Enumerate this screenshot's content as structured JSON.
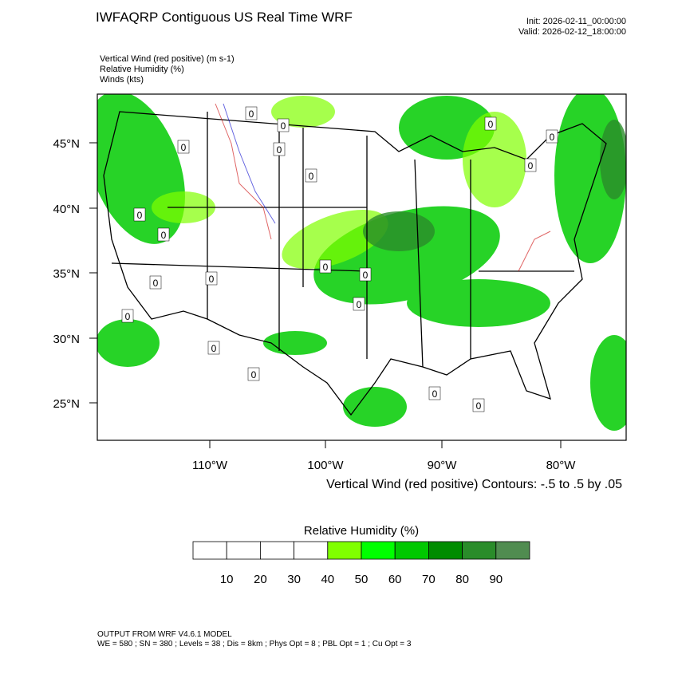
{
  "header": {
    "title": "IWFAQRP Contiguous US Real Time WRF",
    "init": "Init: 2026-02-11_00:00:00",
    "valid": "Valid: 2026-02-12_18:00:00"
  },
  "fields": [
    "Vertical Wind (red positive)   (m s-1)",
    "Relative Humidity   (%)",
    "Winds   (kts)"
  ],
  "map": {
    "lat_labels": [
      "45°N",
      "40°N",
      "35°N",
      "30°N",
      "25°N"
    ],
    "lon_labels": [
      "110°W",
      "100°W",
      "90°W",
      "80°W"
    ],
    "contour_note": "Vertical Wind (red positive) Contours: -.5 to .5 by .05",
    "contour_labels": [
      "0",
      "0",
      "0",
      "0",
      "0",
      "0",
      "0",
      "0",
      "0",
      "0",
      "0",
      "0",
      "0",
      "0",
      "0",
      "0",
      "0",
      "0",
      "0",
      "0"
    ]
  },
  "colorbar": {
    "title": "Relative Humidity  (%)",
    "levels": [
      10,
      20,
      30,
      40,
      50,
      60,
      70,
      80,
      90
    ],
    "colors": [
      "#ffffff",
      "#ffffff",
      "#ffffff",
      "#ffffff",
      "#80ff00",
      "#00ff00",
      "#00c800",
      "#008c00",
      "#2a8c2a",
      "#508c50"
    ]
  },
  "footer": {
    "line1": "OUTPUT FROM WRF V4.6.1 MODEL",
    "line2": "WE = 580 ; SN = 380 ; Levels = 38 ; Dis = 8km ; Phys Opt = 8 ; PBL Opt = 1 ; Cu Opt = 3"
  }
}
